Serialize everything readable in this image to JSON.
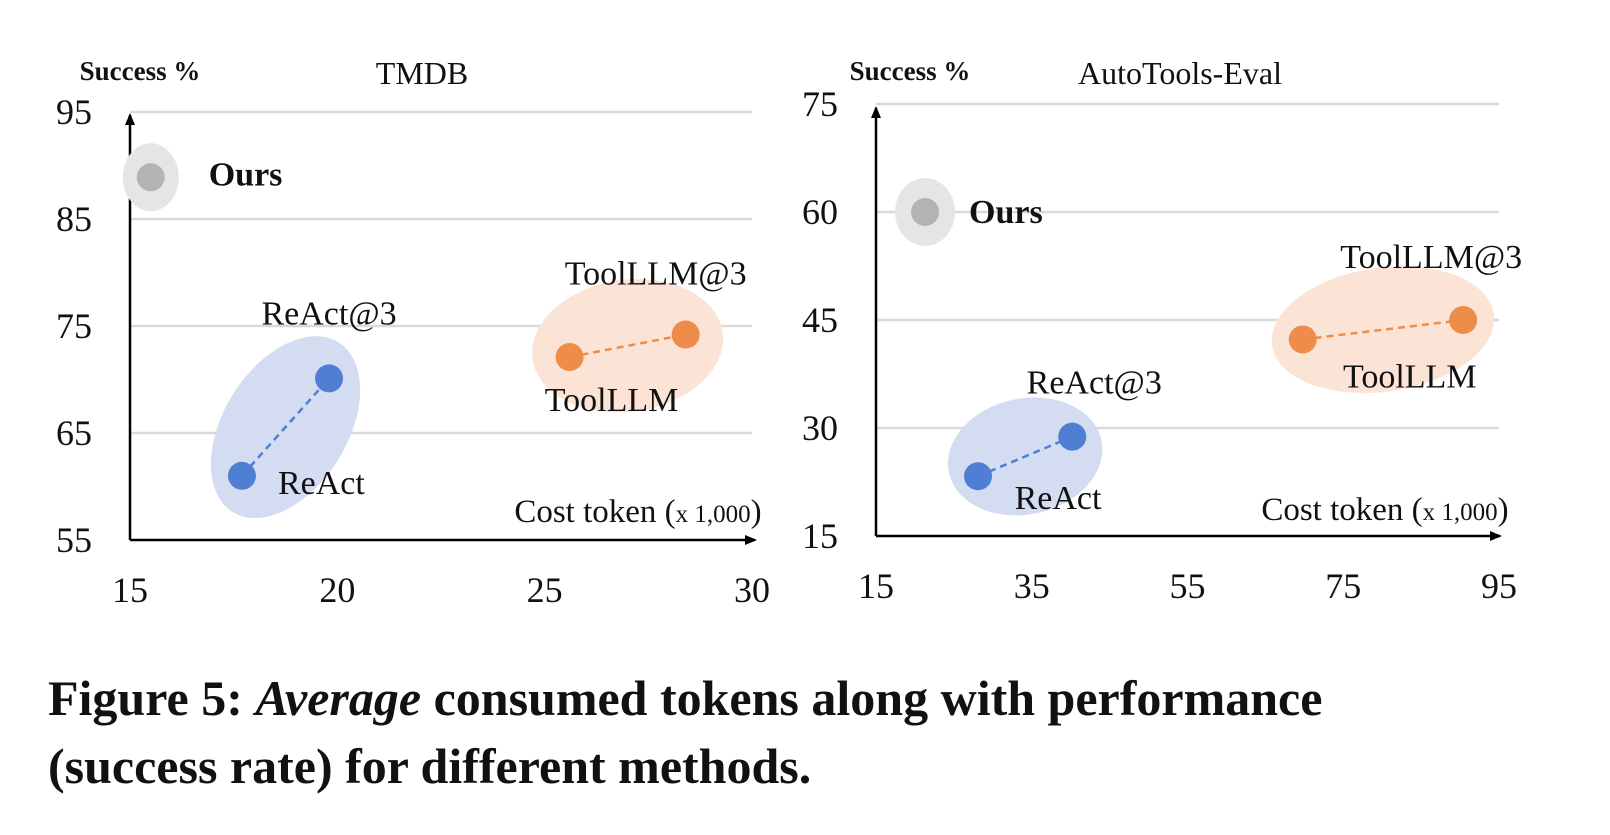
{
  "figure_caption": {
    "label": "Figure 5:",
    "emphasis": "Average",
    "line1_rest": "consumed tokens along with performance",
    "line2": "(success rate) for different methods."
  },
  "colors": {
    "ours": "#b3b3b3",
    "ours_halo": "#e5e5e5",
    "react": "#4f7fd3",
    "react_halo": "#d4dcf1",
    "toolllm": "#ee8d49",
    "toolllm_halo": "#fbe4d6",
    "grid": "#d9d9d9",
    "axis": "#000000"
  },
  "chart_data": [
    {
      "type": "scatter",
      "title": "TMDB",
      "ylabel": "Success %",
      "xlabel": "Cost token (x 1,000)",
      "xlim": [
        15,
        30
      ],
      "ylim": [
        55,
        95
      ],
      "xticks": [
        15,
        20,
        25,
        30
      ],
      "yticks": [
        55,
        65,
        75,
        85,
        95
      ],
      "grid": "horizontal",
      "series": [
        {
          "name": "Ours",
          "points": [
            {
              "label": "Ours",
              "x": 15.5,
              "y": 88.9
            }
          ]
        },
        {
          "name": "ReAct",
          "points": [
            {
              "label": "ReAct",
              "x": 17.7,
              "y": 61.0
            },
            {
              "label": "ReAct@3",
              "x": 19.8,
              "y": 70.1
            }
          ]
        },
        {
          "name": "ToolLLM",
          "points": [
            {
              "label": "ToolLLM",
              "x": 25.6,
              "y": 72.1
            },
            {
              "label": "ToolLLM@3",
              "x": 28.4,
              "y": 74.2
            }
          ]
        }
      ]
    },
    {
      "type": "scatter",
      "title": "AutoTools-Eval",
      "ylabel": "Success %",
      "xlabel": "Cost token (x 1,000)",
      "xlim": [
        15,
        95
      ],
      "ylim": [
        15,
        75
      ],
      "xticks": [
        15,
        35,
        55,
        75,
        95
      ],
      "yticks": [
        15,
        30,
        45,
        60,
        75
      ],
      "grid": "horizontal",
      "series": [
        {
          "name": "Ours",
          "points": [
            {
              "label": "Ours",
              "x": 21.3,
              "y": 60.0
            }
          ]
        },
        {
          "name": "ReAct",
          "points": [
            {
              "label": "ReAct",
              "x": 28.1,
              "y": 23.3
            },
            {
              "label": "ReAct@3",
              "x": 40.2,
              "y": 28.8
            }
          ]
        },
        {
          "name": "ToolLLM",
          "points": [
            {
              "label": "ToolLLM",
              "x": 69.8,
              "y": 42.3
            },
            {
              "label": "ToolLLM@3",
              "x": 90.4,
              "y": 45.0
            }
          ]
        }
      ]
    }
  ]
}
